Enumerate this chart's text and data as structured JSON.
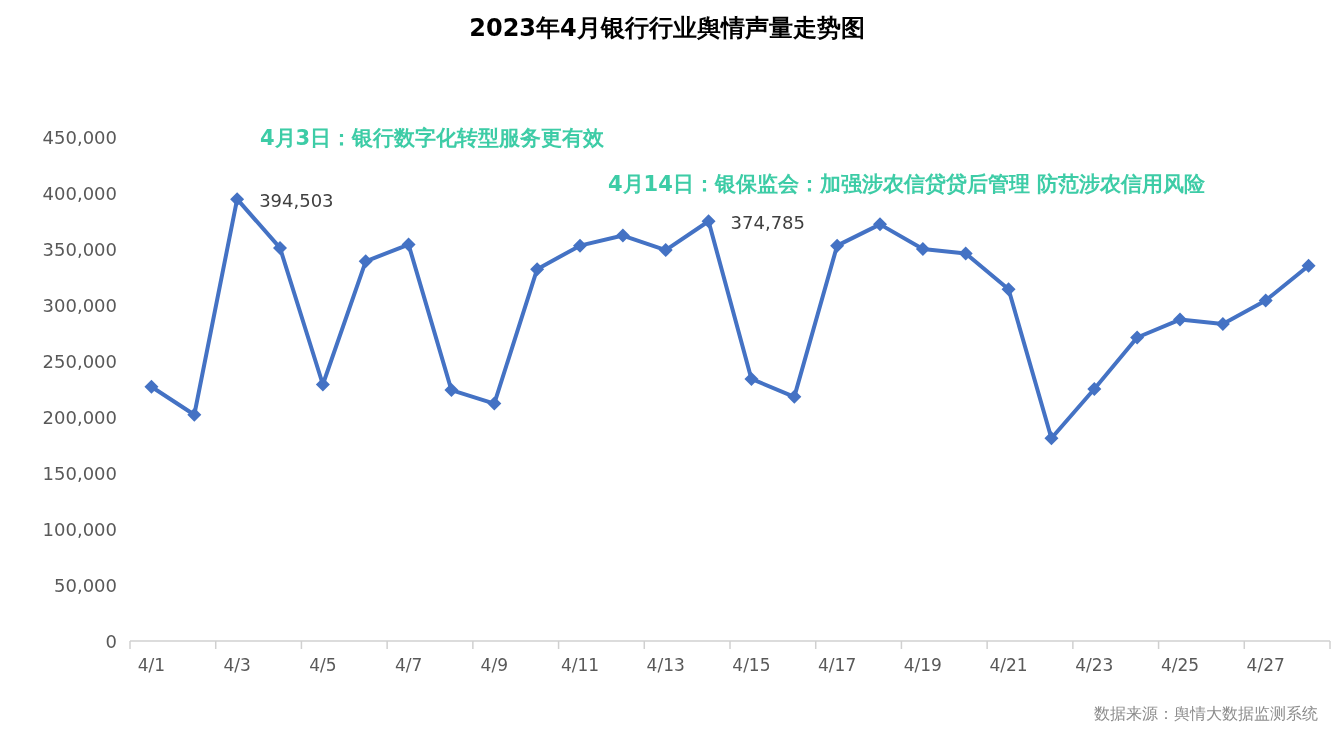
{
  "chart_data": {
    "type": "line",
    "title": "2023年4月银行行业舆情声量走势图",
    "categories": [
      "4/1",
      null,
      "4/3",
      null,
      "4/5",
      null,
      "4/7",
      null,
      "4/9",
      null,
      "4/11",
      null,
      "4/13",
      null,
      "4/15",
      null,
      "4/17",
      null,
      "4/19",
      null,
      "4/21",
      null,
      "4/23",
      null,
      "4/25",
      null,
      "4/27",
      null
    ],
    "series": [
      {
        "color": "#4472c4",
        "values": [
          227000,
          202000,
          394503,
          351000,
          229000,
          339000,
          354000,
          224000,
          212000,
          332000,
          353000,
          362000,
          349000,
          374785,
          234000,
          218000,
          353000,
          372000,
          350000,
          346000,
          314000,
          181000,
          225000,
          271000,
          287000,
          283000,
          304000,
          335000
        ],
        "value_labels": [
          null,
          null,
          "394,503",
          null,
          null,
          null,
          null,
          null,
          null,
          null,
          null,
          null,
          null,
          "374,785",
          null,
          null,
          null,
          null,
          null,
          null,
          null,
          null,
          null,
          null,
          null,
          null,
          null,
          null
        ]
      }
    ],
    "ylim": [
      0,
      450000
    ],
    "yticks": [
      {
        "value": 0,
        "label": "0"
      },
      {
        "value": 50000,
        "label": "50,000"
      },
      {
        "value": 100000,
        "label": "100,000"
      },
      {
        "value": 150000,
        "label": "150,000"
      },
      {
        "value": 200000,
        "label": "200,000"
      },
      {
        "value": 250000,
        "label": "250,000"
      },
      {
        "value": 300000,
        "label": "300,000"
      },
      {
        "value": 350000,
        "label": "350,000"
      },
      {
        "value": 400000,
        "label": "400,000"
      },
      {
        "value": 450000,
        "label": "450,000"
      }
    ],
    "annotations": [
      "4月3日：银行数字化转型服务更有效",
      "4月14日：银保监会：加强涉农信贷贷后管理 防范涉农信用风险",
      "数据来源：舆情大数据监测系统"
    ],
    "grid": false,
    "marker": "diamond",
    "line_style": "solid"
  }
}
